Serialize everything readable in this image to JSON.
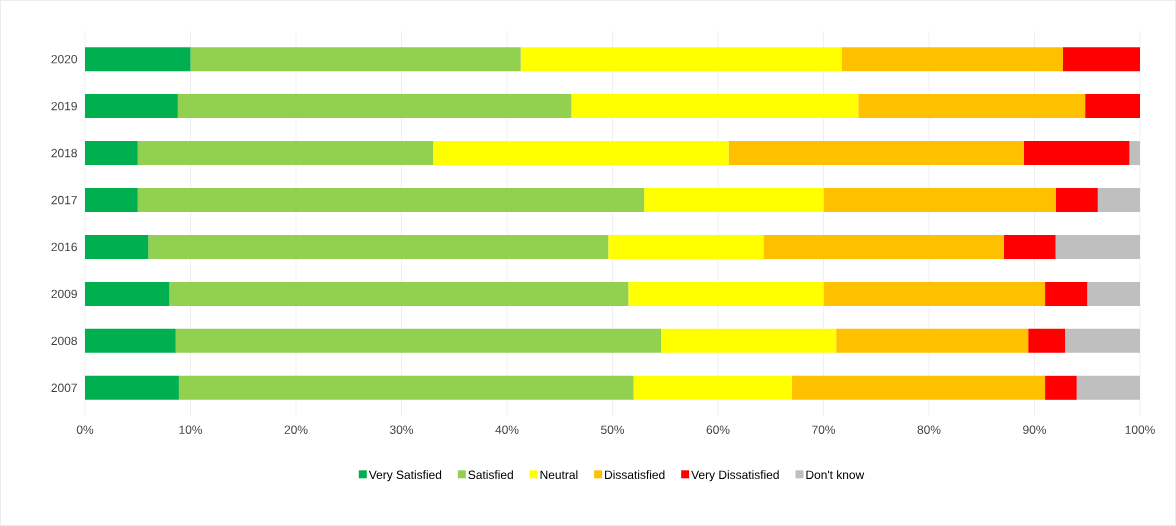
{
  "chart_data": {
    "type": "bar",
    "orientation": "horizontal",
    "stacked": true,
    "categories": [
      "2020",
      "2019",
      "2018",
      "2017",
      "2016",
      "2009",
      "2008",
      "2007"
    ],
    "series": [
      {
        "name": "Very Satisfied",
        "color": "#00b050",
        "values": [
          10,
          8.8,
          5,
          5,
          6,
          8,
          8.6,
          8.9
        ]
      },
      {
        "name": "Satisfied",
        "color": "#92d050",
        "values": [
          31.3,
          37.3,
          28,
          48,
          43.6,
          43.5,
          46,
          43.1
        ]
      },
      {
        "name": "Neutral",
        "color": "#ffff00",
        "values": [
          30.4,
          27.2,
          28,
          17,
          14.7,
          18.5,
          16.6,
          15
        ]
      },
      {
        "name": "Dissatisfied",
        "color": "#ffc000",
        "values": [
          21,
          21.5,
          28,
          22,
          22.8,
          21,
          18.2,
          24
        ]
      },
      {
        "name": "Very Dissatisfied",
        "color": "#ff0000",
        "values": [
          7.3,
          5.2,
          10,
          4,
          4.9,
          4,
          3.5,
          3
        ]
      },
      {
        "name": "Don't know",
        "color": "#bfbfbf",
        "values": [
          null,
          null,
          1,
          4,
          8,
          5,
          7.1,
          6
        ]
      }
    ],
    "xlim": [
      0,
      100
    ],
    "xticks": [
      {
        "value": 0,
        "label": "0%"
      },
      {
        "value": 10,
        "label": "10%"
      },
      {
        "value": 20,
        "label": "20%"
      },
      {
        "value": 30,
        "label": "30%"
      },
      {
        "value": 40,
        "label": "40%"
      },
      {
        "value": 50,
        "label": "50%"
      },
      {
        "value": 60,
        "label": "60%"
      },
      {
        "value": 70,
        "label": "70%"
      },
      {
        "value": 80,
        "label": "80%"
      },
      {
        "value": 90,
        "label": "90%"
      },
      {
        "value": 100,
        "label": "100%"
      }
    ],
    "grid": "x",
    "legend": "bottom"
  }
}
